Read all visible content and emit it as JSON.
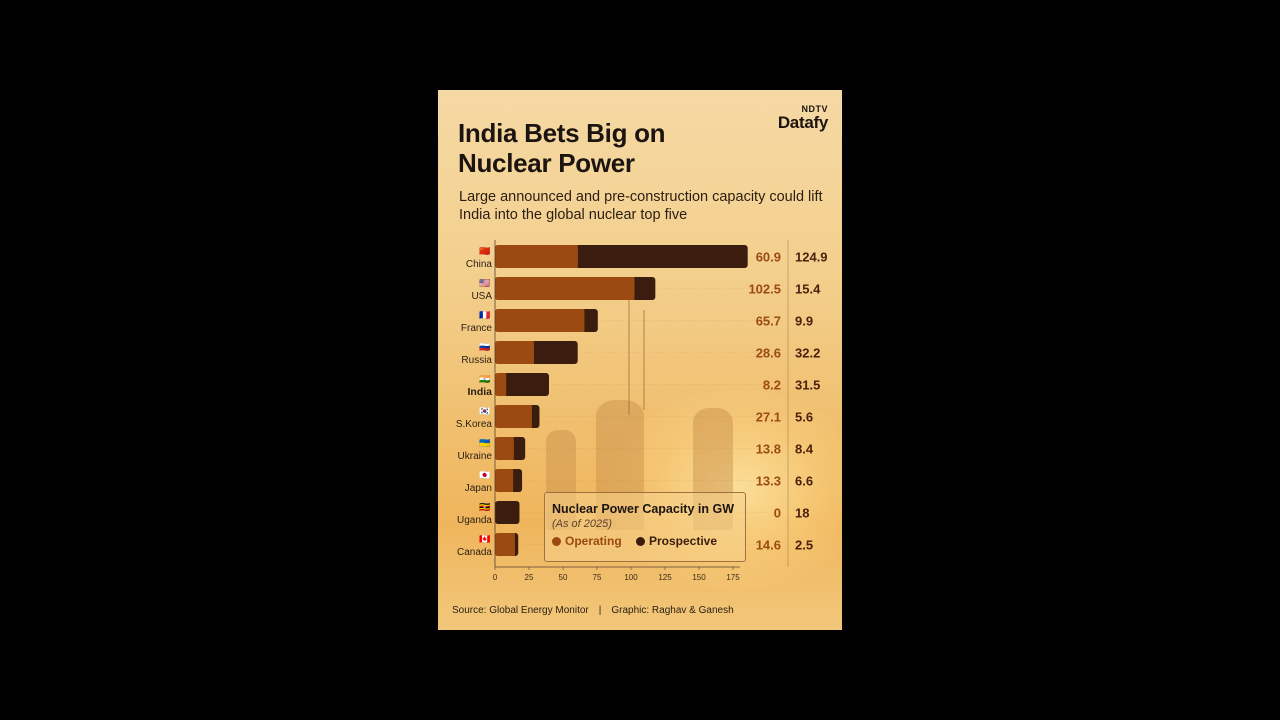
{
  "brand": {
    "line1": "NDTV",
    "line2": "Datafy"
  },
  "title": "India Bets Big on Nuclear Power",
  "subtitle": "Large announced and pre-construction capacity could lift India into the global nuclear top five",
  "legend": {
    "title": "Nuclear Power Capacity in GW",
    "subtitle": "(As of 2025)",
    "operating": "Operating",
    "prospective": "Prospective"
  },
  "footer": {
    "source": "Source: Global Energy Monitor",
    "separator": "|",
    "graphic": "Graphic: Raghav & Ganesh"
  },
  "colors": {
    "operating": "#9b4a12",
    "prospective": "#3a1d0e",
    "value_operating": "#9b4a12",
    "value_prospective": "#4a1f0c",
    "axis": "#5a4030"
  },
  "chart_data": {
    "type": "bar",
    "orientation": "horizontal",
    "stacked": true,
    "categories": [
      "China",
      "USA",
      "France",
      "Russia",
      "India",
      "S.Korea",
      "Ukraine",
      "Japan",
      "Uganda",
      "Canada"
    ],
    "flags": [
      "🇨🇳",
      "🇺🇸",
      "🇫🇷",
      "🇷🇺",
      "🇮🇳",
      "🇰🇷",
      "🇺🇦",
      "🇯🇵",
      "🇺🇬",
      "🇨🇦"
    ],
    "highlight": "India",
    "series": [
      {
        "name": "Operating",
        "values": [
          60.9,
          102.5,
          65.7,
          28.6,
          8.2,
          27.1,
          13.8,
          13.3,
          0,
          14.6
        ]
      },
      {
        "name": "Prospective",
        "values": [
          124.9,
          15.4,
          9.9,
          32.2,
          31.5,
          5.6,
          8.4,
          6.6,
          18,
          2.5
        ]
      }
    ],
    "x_ticks": [
      0,
      25,
      50,
      75,
      100,
      125,
      150,
      175
    ],
    "xlim": [
      0,
      185
    ],
    "grid": false,
    "legend_position": "bottom-right"
  }
}
